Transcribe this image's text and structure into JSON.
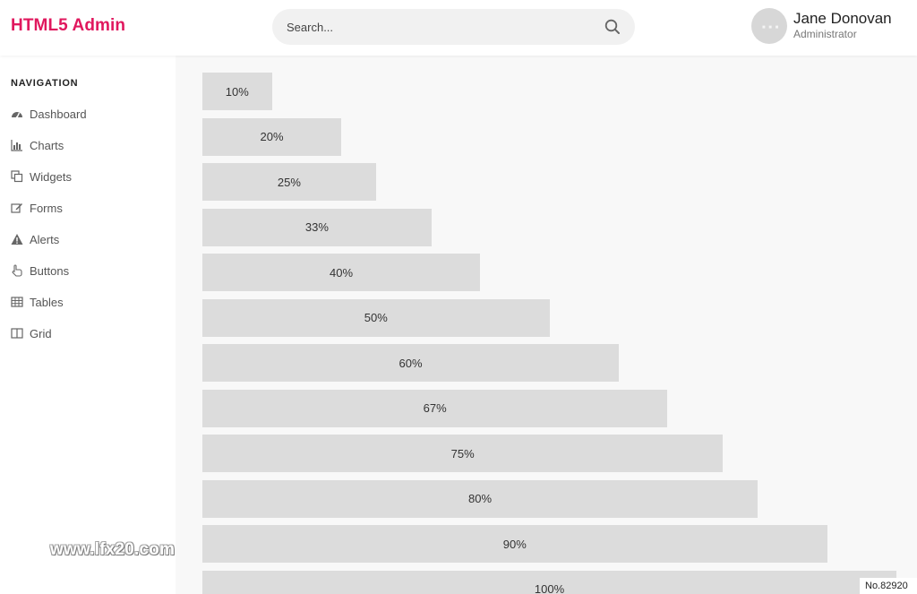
{
  "header": {
    "brand": "HTML5 Admin",
    "search_placeholder": "Search...",
    "user_name": "Jane Donovan",
    "user_role": "Administrator",
    "brand_color": "#e0185e"
  },
  "sidebar": {
    "heading": "NAVIGATION",
    "items": [
      {
        "label": "Dashboard",
        "icon": "dashboard-icon"
      },
      {
        "label": "Charts",
        "icon": "bar-chart-icon"
      },
      {
        "label": "Widgets",
        "icon": "copy-icon"
      },
      {
        "label": "Forms",
        "icon": "edit-icon"
      },
      {
        "label": "Alerts",
        "icon": "warning-icon"
      },
      {
        "label": "Buttons",
        "icon": "pointer-hand-icon"
      },
      {
        "label": "Tables",
        "icon": "table-icon"
      },
      {
        "label": "Grid",
        "icon": "columns-icon"
      }
    ]
  },
  "progress": {
    "bars": [
      {
        "label": "10%",
        "value": 10
      },
      {
        "label": "20%",
        "value": 20
      },
      {
        "label": "25%",
        "value": 25
      },
      {
        "label": "33%",
        "value": 33
      },
      {
        "label": "40%",
        "value": 40
      },
      {
        "label": "50%",
        "value": 50
      },
      {
        "label": "60%",
        "value": 60
      },
      {
        "label": "67%",
        "value": 67
      },
      {
        "label": "75%",
        "value": 75
      },
      {
        "label": "80%",
        "value": 80
      },
      {
        "label": "90%",
        "value": 90
      },
      {
        "label": "100%",
        "value": 100
      }
    ],
    "bar_color": "#dcdcdc"
  },
  "overlay": {
    "watermark": "www.lfx20.com",
    "badge": "No.82920"
  }
}
